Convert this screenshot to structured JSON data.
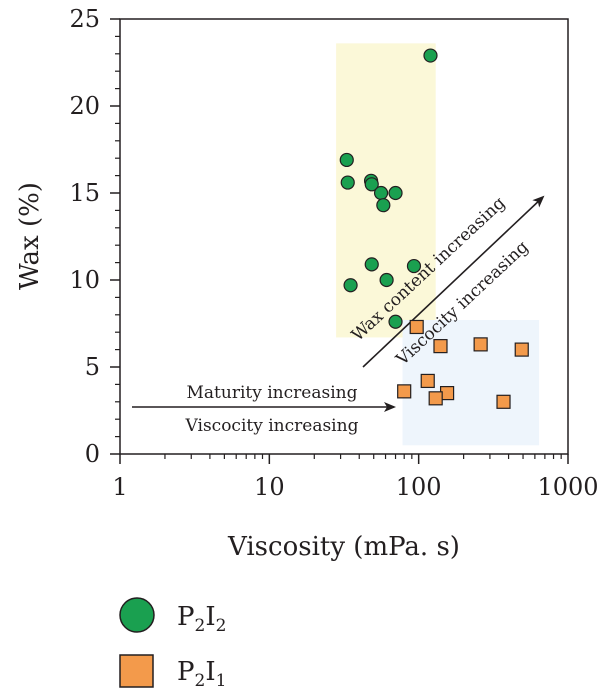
{
  "colors": {
    "series_P2I2": "#1aa050",
    "series_P2I1": "#f39a4b",
    "region_yellow": "#fbf8d8",
    "region_blue": "#eef5fc",
    "axis": "#231f20"
  },
  "chart_data": {
    "type": "scatter",
    "x_scale": "log",
    "xlabel": "Viscosity (mPa. s)",
    "ylabel": "Wax (%)",
    "xlim": [
      1,
      1000
    ],
    "ylim": [
      0,
      25
    ],
    "x_ticks": [
      "1",
      "10",
      "100",
      "1000"
    ],
    "y_ticks": [
      "0",
      "5",
      "10",
      "15",
      "20",
      "25"
    ],
    "grid": false,
    "legend_position": "bottom-left",
    "regions": [
      {
        "x": [
          28,
          130
        ],
        "y": [
          6.7,
          23.6
        ],
        "color": "#fbf8d8"
      },
      {
        "x": [
          78,
          640
        ],
        "y": [
          0.5,
          7.7
        ],
        "color": "#eef5fc"
      }
    ],
    "series": [
      {
        "name_parts": [
          "P",
          "2",
          "I",
          "2"
        ],
        "marker": "circle",
        "color": "#1aa050",
        "x": [
          120,
          33,
          33.5,
          48,
          48.5,
          56,
          70,
          58,
          48.5,
          93,
          61,
          35,
          70
        ],
        "y": [
          22.9,
          16.9,
          15.6,
          15.7,
          15.5,
          15.0,
          15.0,
          14.3,
          10.9,
          10.8,
          10.0,
          9.7,
          7.6
        ]
      },
      {
        "name_parts": [
          "P",
          "2",
          "I",
          "1"
        ],
        "marker": "square",
        "color": "#f39a4b",
        "x": [
          97,
          260,
          140,
          490,
          115,
          80,
          155,
          130,
          370
        ],
        "y": [
          7.3,
          6.3,
          6.2,
          6.0,
          4.2,
          3.6,
          3.5,
          3.2,
          3.0
        ]
      }
    ],
    "annotations": [
      {
        "text": "Maturity increasing"
      },
      {
        "text": "Viscocity increasing"
      },
      {
        "text": "Wax content increasing"
      },
      {
        "text": "Viscocity increasing"
      }
    ]
  }
}
